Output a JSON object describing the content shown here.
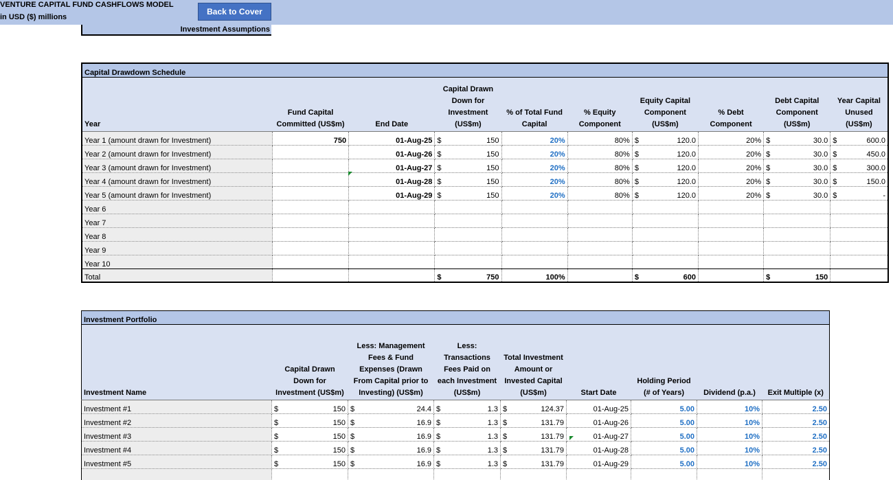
{
  "header": {
    "title": "VENTURE CAPITAL FUND CASHFLOWS MODEL",
    "subtitle": "in USD ($) millions",
    "back_label": "Back to Cover",
    "assumptions_label": "Investment Assumptions"
  },
  "drawdown": {
    "section_title": "Capital Drawdown Schedule",
    "headers": [
      "Year",
      "Fund Capital Committed (US$m)",
      "End Date",
      "Capital Drawn Down for Investment (US$m)",
      "% of Total Fund Capital",
      "% Equity Component",
      "Equity Capital Component (US$m)",
      "% Debt Component",
      "Debt Capital Component (US$m)",
      "Year Capital Unused (US$m)"
    ],
    "rows": [
      {
        "year": "Year 1 (amount drawn for Investment)",
        "committed": "750",
        "end": "01-Aug-25",
        "drawn": "150",
        "pct_total": "20%",
        "pct_equity": "80%",
        "equity": "120.0",
        "pct_debt": "20%",
        "debt": "30.0",
        "unused": "600.0"
      },
      {
        "year": "Year 2 (amount drawn for Investment)",
        "committed": "",
        "end": "01-Aug-26",
        "drawn": "150",
        "pct_total": "20%",
        "pct_equity": "80%",
        "equity": "120.0",
        "pct_debt": "20%",
        "debt": "30.0",
        "unused": "450.0"
      },
      {
        "year": "Year 3 (amount drawn for Investment)",
        "committed": "",
        "end": "01-Aug-27",
        "drawn": "150",
        "pct_total": "20%",
        "pct_equity": "80%",
        "equity": "120.0",
        "pct_debt": "20%",
        "debt": "30.0",
        "unused": "300.0"
      },
      {
        "year": "Year 4 (amount drawn for Investment)",
        "committed": "",
        "end": "01-Aug-28",
        "drawn": "150",
        "pct_total": "20%",
        "pct_equity": "80%",
        "equity": "120.0",
        "pct_debt": "20%",
        "debt": "30.0",
        "unused": "150.0"
      },
      {
        "year": "Year 5 (amount drawn for Investment)",
        "committed": "",
        "end": "01-Aug-29",
        "drawn": "150",
        "pct_total": "20%",
        "pct_equity": "80%",
        "equity": "120.0",
        "pct_debt": "20%",
        "debt": "30.0",
        "unused": "-"
      }
    ],
    "empty_years": [
      "Year 6",
      "Year 7",
      "Year 8",
      "Year 9",
      "Year 10"
    ],
    "total": {
      "label": "Total",
      "drawn": "750",
      "pct_total": "100%",
      "equity": "600",
      "debt": "150"
    },
    "currency": "$"
  },
  "portfolio": {
    "section_title": "Investment Portfolio",
    "headers": [
      "Investment Name",
      "Capital Drawn Down for Investment (US$m)",
      "Less: Management Fees & Fund Expenses (Drawn From Capital prior to Investing) (US$m)",
      "Less: Transactions Fees Paid on each Investment (US$m)",
      "Total Investment Amount or Invested Capital (US$m)",
      "Start Date",
      "Holding Period (# of Years)",
      "Dividend (p.a.)",
      "Exit Multiple (x)"
    ],
    "rows": [
      {
        "name": "Investment #1",
        "drawn": "150",
        "mgmt": "24.4",
        "txn": "1.3",
        "total": "124.37",
        "start": "01-Aug-25",
        "hold": "5.00",
        "div": "10%",
        "exit": "2.50"
      },
      {
        "name": "Investment #2",
        "drawn": "150",
        "mgmt": "16.9",
        "txn": "1.3",
        "total": "131.79",
        "start": "01-Aug-26",
        "hold": "5.00",
        "div": "10%",
        "exit": "2.50"
      },
      {
        "name": "Investment #3",
        "drawn": "150",
        "mgmt": "16.9",
        "txn": "1.3",
        "total": "131.79",
        "start": "01-Aug-27",
        "hold": "5.00",
        "div": "10%",
        "exit": "2.50"
      },
      {
        "name": "Investment #4",
        "drawn": "150",
        "mgmt": "16.9",
        "txn": "1.3",
        "total": "131.79",
        "start": "01-Aug-28",
        "hold": "5.00",
        "div": "10%",
        "exit": "2.50"
      },
      {
        "name": "Investment #5",
        "drawn": "150",
        "mgmt": "16.9",
        "txn": "1.3",
        "total": "131.79",
        "start": "01-Aug-29",
        "hold": "5.00",
        "div": "10%",
        "exit": "2.50"
      }
    ],
    "currency": "$"
  }
}
